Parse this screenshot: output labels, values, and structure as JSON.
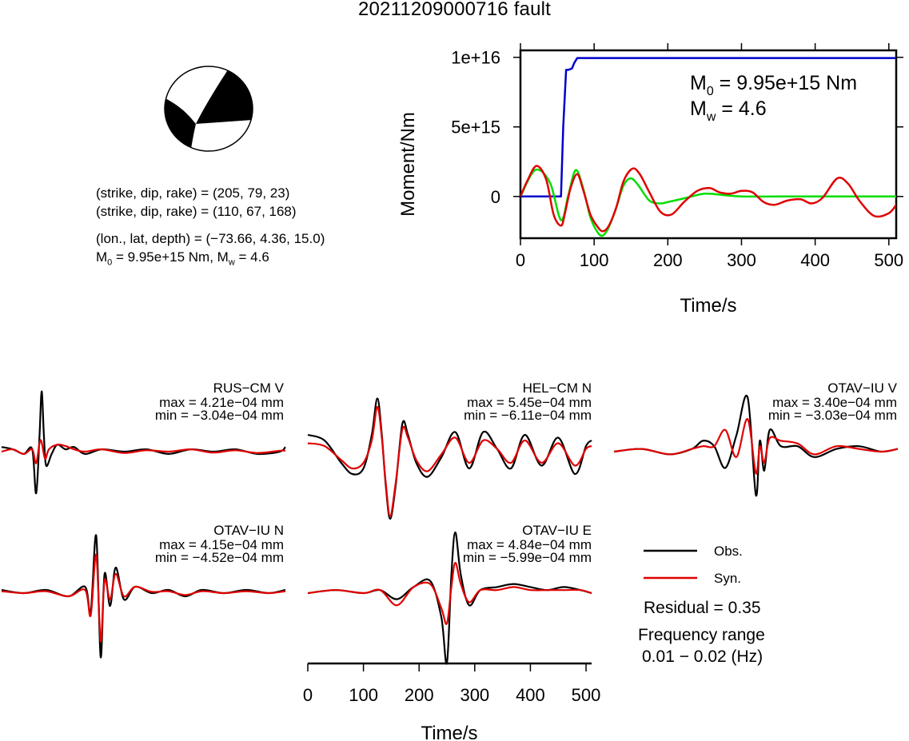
{
  "figure": {
    "title": "20211209000716 fault",
    "mechanism": {
      "plane1": "(strike, dip, rake) = (205, 79, 23)",
      "plane2": "(strike, dip, rake) = (110, 67, 168)",
      "location": "(lon., lat, depth) = (−73.66, 4.36, 15.0)",
      "moment_prefix": "M",
      "moment_sub": "0",
      "moment_rest": " = 9.95e+15 Nm, M",
      "mw_sub": "w",
      "mw_rest": " = 4.6"
    },
    "legend": {
      "obs": "Obs.",
      "syn": "Syn.",
      "obs_color": "#000000",
      "syn_color": "#e00000"
    },
    "residual": "Residual = 0.35",
    "freq_line1": "Frequency range",
    "freq_line2": "0.01 − 0.02 (Hz)"
  },
  "chart_data": [
    {
      "type": "line",
      "name": "moment-rate",
      "xlabel": "Time/s",
      "ylabel": "Moment/Nm",
      "xlim": [
        0,
        510
      ],
      "ylim": [
        -3000000000000000.0,
        1.05e+16
      ],
      "xticks": [
        0,
        100,
        200,
        300,
        400,
        500
      ],
      "yticks": [
        {
          "v": 0,
          "label": "0"
        },
        {
          "v": 5000000000000000.0,
          "label": "5e+15"
        },
        {
          "v": 1e+16,
          "label": "1e+16"
        }
      ],
      "annotation": {
        "m0_prefix": "M",
        "m0_sub": "0",
        "m0_rest": " = 9.95e+15 Nm",
        "mw_prefix": "M",
        "mw_sub": "w",
        "mw_rest": " = 4.6"
      },
      "series": [
        {
          "color": "#0000cc",
          "x": [
            0,
            55,
            58,
            62,
            65,
            70,
            73,
            77,
            80,
            510
          ],
          "y": [
            0,
            0,
            5000000000000000.0,
            9100000000000000.0,
            9100000000000000.0,
            9200000000000000.0,
            9600000000000000.0,
            9950000000000000.0,
            9950000000000000.0,
            9950000000000000.0
          ]
        },
        {
          "color": "#00dd00",
          "x": [
            0,
            20,
            40,
            55,
            65,
            75,
            85,
            95,
            105,
            112,
            120,
            130,
            140,
            150,
            160,
            175,
            190,
            200,
            225,
            250,
            275,
            300,
            350,
            400,
            450,
            510
          ],
          "y": [
            0,
            1900000000000000.0,
            1000000000000000.0,
            -1700000000000000.0,
            100000000000000.0,
            1900000000000000.0,
            600000000000000.0,
            -1500000000000000.0,
            -2600000000000000.0,
            -2800000000000000.0,
            -2200000000000000.0,
            -800000000000000.0,
            800000000000000.0,
            1300000000000000.0,
            800000000000000.0,
            -300000000000000.0,
            -500000000000000.0,
            -400000000000000.0,
            -100000000000000.0,
            200000000000000.0,
            100000000000000.0,
            0,
            0,
            0,
            0,
            0
          ]
        },
        {
          "color": "#e00000",
          "x": [
            0,
            10,
            22,
            35,
            45,
            55,
            60,
            68,
            77,
            85,
            95,
            105,
            112,
            120,
            130,
            140,
            152,
            162,
            175,
            190,
            205,
            222,
            240,
            257,
            270,
            285,
            300,
            315,
            330,
            345,
            362,
            380,
            395,
            410,
            430,
            445,
            460,
            480,
            500,
            510
          ],
          "y": [
            0,
            1200000000000000.0,
            2200000000000000.0,
            1200000000000000.0,
            -1300000000000000.0,
            -2100000000000000.0,
            -1300000000000000.0,
            600000000000000.0,
            1600000000000000.0,
            500000000000000.0,
            -1300000000000000.0,
            -2200000000000000.0,
            -2500000000000000.0,
            -2100000000000000.0,
            -800000000000000.0,
            1100000000000000.0,
            2000000000000000.0,
            1600000000000000.0,
            300000000000000.0,
            -1100000000000000.0,
            -1300000000000000.0,
            -400000000000000.0,
            400000000000000.0,
            600000000000000.0,
            300000000000000.0,
            200000000000000.0,
            400000000000000.0,
            300000000000000.0,
            -400000000000000.0,
            -600000000000000.0,
            -300000000000000.0,
            -200000000000000.0,
            -500000000000000.0,
            -100000000000000.0,
            1300000000000000.0,
            900000000000000.0,
            -300000000000000.0,
            -1400000000000000.0,
            -1200000000000000.0,
            -600000000000000.0
          ]
        }
      ]
    },
    {
      "type": "line",
      "name": "waveforms",
      "xlabel": "Time/s",
      "xlim": [
        0,
        510
      ],
      "xticks": [
        0,
        100,
        200,
        300,
        400,
        500
      ],
      "traces": [
        {
          "station": "RUS−CM V",
          "max": "max = 4.21e−04 mm",
          "min": "min = −3.04e−04 mm",
          "obs": {
            "x": [
              0,
              20,
              40,
              55,
              62,
              68,
              72,
              76,
              80,
              90,
              100,
              115,
              130,
              150,
              180,
              220,
              260,
              300,
              340,
              380,
              420,
              460,
              500,
              510
            ],
            "y": [
              0.1,
              0.05,
              -0.05,
              0.05,
              -0.9,
              0.3,
              1.3,
              0.35,
              -0.3,
              -0.05,
              0.15,
              0.05,
              0.1,
              -0.05,
              0.05,
              0,
              0.05,
              -0.05,
              0.05,
              0,
              0.05,
              -0.05,
              0,
              0.1
            ]
          },
          "syn": {
            "x": [
              0,
              20,
              40,
              55,
              62,
              70,
              78,
              85,
              100,
              115,
              130,
              150,
              180,
              220,
              260,
              300,
              340,
              380,
              420,
              460,
              500,
              510
            ],
            "y": [
              0,
              0.05,
              -0.05,
              0.05,
              -0.25,
              0.25,
              -0.15,
              0.05,
              0.15,
              0.12,
              0.05,
              0.0,
              0.05,
              -0.03,
              0.03,
              0,
              0.05,
              -0.02,
              0.03,
              -0.03,
              0.02,
              0.02
            ]
          }
        },
        {
          "station": "HEL−CM N",
          "max": "max = 5.45e−04 mm",
          "min": "min = −6.11e−04 mm",
          "obs": {
            "x": [
              0,
              30,
              60,
              80,
              100,
              115,
              125,
              133,
              140,
              148,
              158,
              170,
              180,
              195,
              215,
              240,
              265,
              290,
              315,
              340,
              365,
              390,
              420,
              450,
              480,
              500,
              510
            ],
            "y": [
              0.3,
              0.2,
              -0.2,
              -0.4,
              -0.3,
              0.3,
              0.95,
              0.3,
              -0.6,
              -1.2,
              -0.6,
              0.5,
              0.3,
              -0.2,
              -0.45,
              -0.1,
              0.35,
              -0.3,
              0.35,
              0.05,
              -0.3,
              0.3,
              -0.25,
              0.25,
              -0.4,
              0.1,
              0.2
            ]
          },
          "syn": {
            "x": [
              0,
              30,
              60,
              80,
              100,
              115,
              125,
              133,
              140,
              148,
              158,
              170,
              180,
              195,
              215,
              240,
              265,
              290,
              315,
              340,
              365,
              390,
              420,
              450,
              480,
              500,
              510
            ],
            "y": [
              0.15,
              0.1,
              -0.15,
              -0.3,
              -0.2,
              0.2,
              0.8,
              0.25,
              -0.55,
              -1.15,
              -0.55,
              0.4,
              0.25,
              -0.15,
              -0.35,
              -0.05,
              0.25,
              -0.2,
              0.2,
              0.05,
              -0.2,
              0.2,
              -0.2,
              0.15,
              -0.25,
              0.05,
              0.1
            ]
          }
        },
        {
          "station": "OTAV−IU V",
          "max": "max = 3.40e−04 mm",
          "min": "min = −3.03e−04 mm",
          "obs": {
            "x": [
              0,
              50,
              100,
              140,
              160,
              180,
              200,
              220,
              240,
              255,
              262,
              270,
              280,
              300,
              330,
              360,
              400,
              440,
              480,
              510
            ],
            "y": [
              0,
              0.05,
              -0.05,
              0.05,
              0.2,
              0.1,
              -0.3,
              0.3,
              1.0,
              -0.8,
              0.2,
              -0.35,
              0.4,
              0.1,
              0.1,
              -0.1,
              0.05,
              0.1,
              0,
              0.05
            ]
          },
          "syn": {
            "x": [
              0,
              50,
              100,
              140,
              160,
              180,
              200,
              220,
              240,
              255,
              262,
              270,
              280,
              300,
              330,
              360,
              400,
              440,
              480,
              510
            ],
            "y": [
              0,
              0.05,
              -0.05,
              0.05,
              0.1,
              0.1,
              0.4,
              -0.1,
              0.6,
              -0.4,
              0.1,
              -0.2,
              0.25,
              0.2,
              0.15,
              -0.05,
              0.1,
              0.05,
              0,
              0.05
            ]
          }
        },
        {
          "station": "OTAV−IU N",
          "max": "max = 4.15e−04 mm",
          "min": "min = −4.52e−04 mm",
          "obs": {
            "x": [
              0,
              40,
              80,
              120,
              150,
              160,
              170,
              178,
              185,
              195,
              205,
              220,
              240,
              270,
              300,
              330,
              360,
              400,
              440,
              480,
              510
            ],
            "y": [
              0.05,
              0,
              0.05,
              -0.05,
              0.1,
              -0.3,
              0.9,
              -1.0,
              0.3,
              -0.2,
              0.4,
              -0.1,
              0.1,
              0,
              0.05,
              -0.05,
              0.05,
              0,
              0.05,
              0,
              0.05
            ]
          },
          "syn": {
            "x": [
              0,
              40,
              80,
              120,
              150,
              160,
              170,
              178,
              185,
              195,
              205,
              220,
              240,
              270,
              300,
              330,
              360,
              400,
              440,
              480,
              510
            ],
            "y": [
              0.03,
              0,
              0.03,
              -0.05,
              0.05,
              -0.35,
              0.6,
              -0.75,
              0.2,
              -0.1,
              0.3,
              -0.05,
              0.1,
              0.02,
              0.03,
              -0.03,
              0.03,
              0,
              0.03,
              0,
              0.03
            ]
          }
        },
        {
          "station": "OTAV−IU E",
          "max": "max = 4.84e−04 mm",
          "min": "min = −5.99e−04 mm",
          "obs": {
            "x": [
              0,
              50,
              100,
              130,
              160,
              190,
              220,
              240,
              250,
              258,
              265,
              275,
              290,
              310,
              340,
              370,
              400,
              430,
              460,
              490,
              510
            ],
            "y": [
              0,
              0.05,
              0,
              0.05,
              -0.1,
              0.1,
              0.2,
              -0.4,
              -1.15,
              0.3,
              1.0,
              0.3,
              -0.2,
              0.05,
              0.1,
              0.15,
              0.1,
              0.05,
              0.1,
              0.05,
              0
            ]
          },
          "syn": {
            "x": [
              0,
              50,
              100,
              130,
              160,
              190,
              220,
              240,
              250,
              258,
              265,
              275,
              290,
              310,
              340,
              370,
              400,
              430,
              460,
              490,
              510
            ],
            "y": [
              0,
              0.05,
              0,
              0.05,
              -0.2,
              0.1,
              0.15,
              -0.25,
              -0.5,
              0.1,
              0.5,
              0.15,
              -0.15,
              0.05,
              0.05,
              0.1,
              0.05,
              0.05,
              0.05,
              0.05,
              0
            ]
          }
        }
      ]
    }
  ]
}
